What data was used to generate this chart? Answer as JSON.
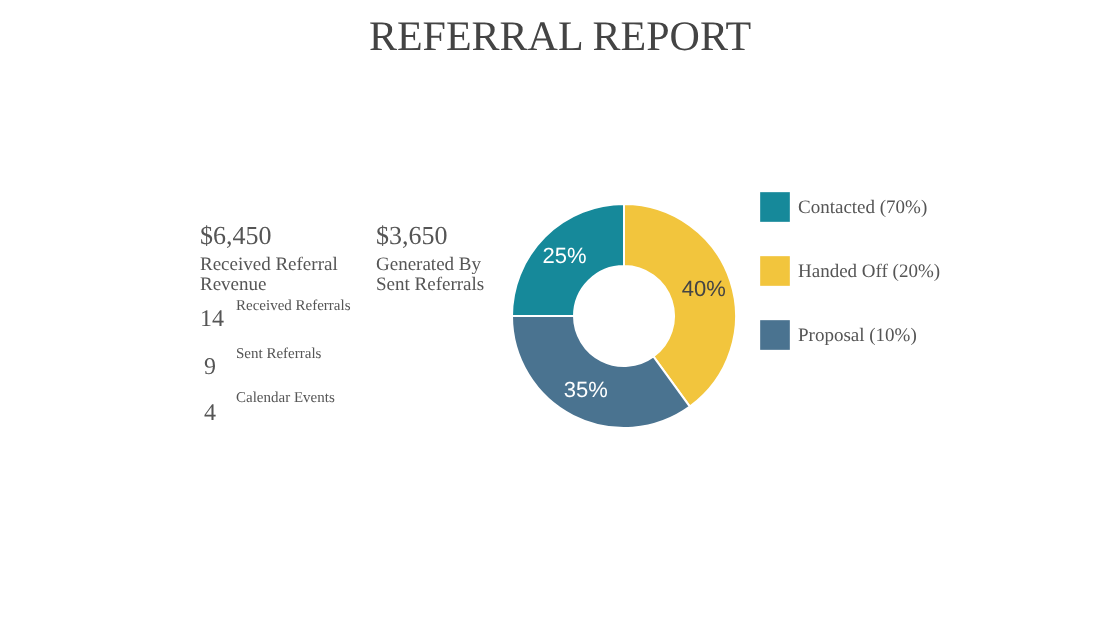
{
  "chart_data": [
    {
      "type": "other",
      "title": "REFERRAL REPORT",
      "annotations": [
        "$6,450",
        "Received Referral Revenue",
        "$3,650",
        "Generated By Sent Referrals",
        "14",
        "Received Referrals",
        "9",
        "Sent Referrals",
        "4",
        "Calendar Events"
      ]
    },
    {
      "type": "donut",
      "categories": [
        "Contacted (70%)",
        "Handed Off (20%)",
        "Proposal (10%)"
      ],
      "values": [
        25,
        40,
        35
      ],
      "colors": [
        "#16899a",
        "#f2c53d",
        "#4a7390"
      ],
      "value_labels": [
        "25%",
        "40%",
        "35%"
      ],
      "legend": "right"
    }
  ]
}
